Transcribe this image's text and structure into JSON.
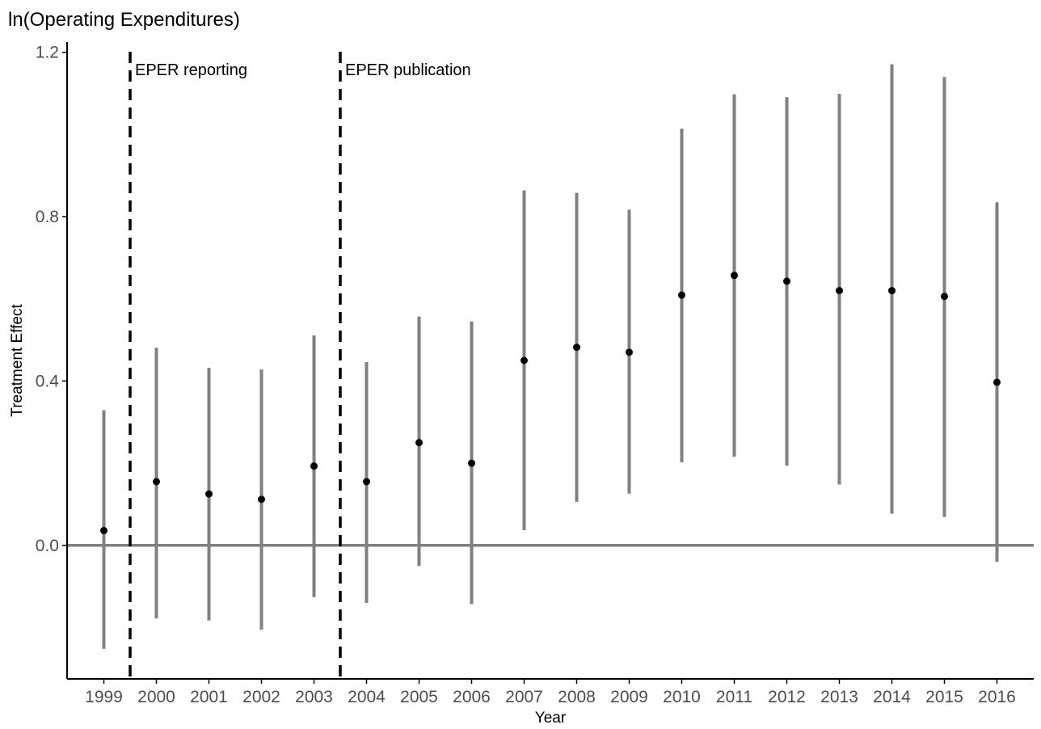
{
  "chart_data": {
    "type": "scatter",
    "title": "ln(Operating Expenditures)",
    "xlabel": "Year",
    "ylabel": "Treatment Effect",
    "x": [
      1999,
      2000,
      2001,
      2002,
      2003,
      2004,
      2005,
      2006,
      2007,
      2008,
      2009,
      2010,
      2011,
      2012,
      2013,
      2014,
      2015,
      2016
    ],
    "x_tick_labels": [
      "1999",
      "2000",
      "2001",
      "2002",
      "2003",
      "2004",
      "2005",
      "2006",
      "2007",
      "2008",
      "2009",
      "2010",
      "2011",
      "2012",
      "2013",
      "2014",
      "2015",
      "2016"
    ],
    "estimate": [
      0.036,
      0.155,
      0.125,
      0.112,
      0.193,
      0.155,
      0.25,
      0.2,
      0.45,
      0.482,
      0.47,
      0.609,
      0.657,
      0.643,
      0.62,
      0.62,
      0.606,
      0.397
    ],
    "ci_lower": [
      -0.252,
      -0.178,
      -0.183,
      -0.205,
      -0.126,
      -0.14,
      -0.05,
      -0.143,
      0.037,
      0.106,
      0.126,
      0.202,
      0.216,
      0.194,
      0.148,
      0.077,
      0.069,
      -0.04
    ],
    "ci_upper": [
      0.329,
      0.481,
      0.432,
      0.428,
      0.511,
      0.446,
      0.557,
      0.545,
      0.864,
      0.858,
      0.817,
      1.014,
      1.098,
      1.091,
      1.099,
      1.171,
      1.14,
      0.835
    ],
    "ylim": [
      -0.325,
      1.225
    ],
    "xlim": [
      1998.3,
      2016.7
    ],
    "y_ticks": [
      0.0,
      0.4,
      0.8,
      1.2
    ],
    "y_tick_labels": [
      "0.0",
      "0.4",
      "0.8",
      "1.2"
    ],
    "hline_y": 0,
    "vlines": [
      {
        "x": 1999.5,
        "label": "EPER reporting"
      },
      {
        "x": 2003.5,
        "label": "EPER publication"
      }
    ],
    "grid": false,
    "legend": "none",
    "colors": {
      "errorbar": "#808080",
      "point": "#000000",
      "zero_line": "#808080",
      "vline": "#000000",
      "axis": "#000000",
      "tick_label": "#4d4d4d"
    }
  }
}
